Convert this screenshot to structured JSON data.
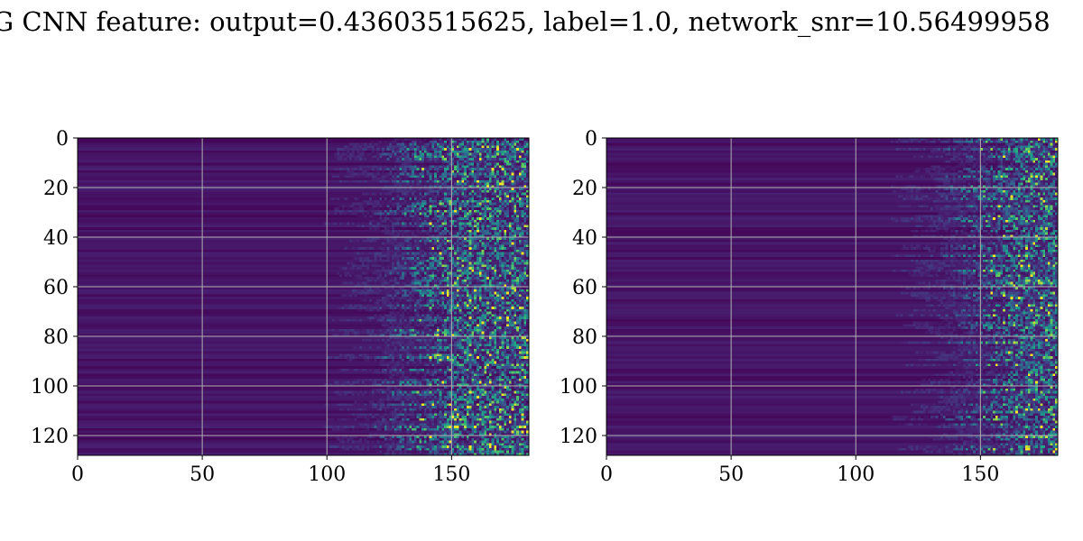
{
  "title": "G CNN feature: output=0.43603515625, label=1.0, network_snr=10.56499958",
  "chart_data": [
    {
      "type": "heatmap",
      "panel": "left",
      "xticks": [
        0,
        50,
        100,
        150
      ],
      "yticks": [
        0,
        20,
        40,
        60,
        80,
        100,
        120
      ],
      "xlim": [
        0,
        181
      ],
      "ylim": [
        128,
        0
      ],
      "grid": true,
      "colormap": "viridis",
      "n_rows": 128,
      "n_cols": 181,
      "activation_onset_col": 125,
      "description_note": ""
    },
    {
      "type": "heatmap",
      "panel": "right",
      "xticks": [
        0,
        50,
        100,
        150
      ],
      "yticks": [
        0,
        20,
        40,
        60,
        80,
        100,
        120
      ],
      "xlim": [
        0,
        181
      ],
      "ylim": [
        128,
        0
      ],
      "grid": true,
      "colormap": "viridis",
      "n_rows": 128,
      "n_cols": 181,
      "activation_onset_col": 140,
      "description_note": ""
    }
  ],
  "colors": {
    "low": "#440154",
    "mid": "#21918c",
    "high": "#fde725",
    "grid": "#b0b0b0"
  }
}
